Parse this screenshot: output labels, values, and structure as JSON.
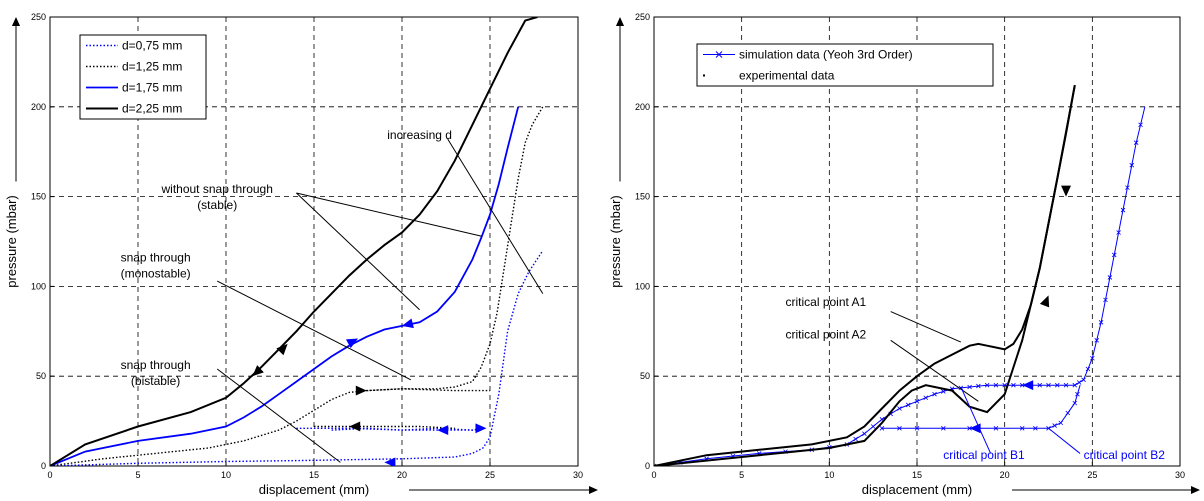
{
  "chart_data": [
    {
      "type": "line",
      "title": "",
      "xlabel": "displacement (mm)",
      "ylabel": "pressure (mbar)",
      "xlim": [
        0,
        30
      ],
      "ylim": [
        0,
        250
      ],
      "xticks": [
        "0",
        "5",
        "10",
        "15",
        "20",
        "25",
        "30"
      ],
      "yticks": [
        "0",
        "50",
        "100",
        "150",
        "200",
        "250"
      ],
      "grid": true,
      "legend_position": "top-left",
      "series": [
        {
          "name": "d=0,75 mm",
          "color": "#0000ff",
          "dash": "dotted",
          "width": 1.4,
          "x": [
            0,
            5,
            10,
            14,
            17,
            20,
            23,
            24,
            24.6,
            25,
            25.5,
            26,
            26.6,
            27.2,
            27.8,
            28
          ],
          "y": [
            0,
            1.5,
            2.5,
            3,
            3.5,
            4,
            5,
            7,
            10,
            16,
            40,
            75,
            96,
            108,
            117,
            120
          ]
        },
        {
          "name": "d=1,25 mm",
          "color": "#000000",
          "dash": "dotted",
          "width": 1.4,
          "x": [
            0,
            3,
            6,
            9,
            11,
            13,
            14,
            15,
            16,
            17,
            18,
            20,
            22,
            23,
            24,
            24.5,
            25,
            25.4,
            25.8,
            26.2,
            26.6,
            27,
            27.4,
            28
          ],
          "y": [
            0,
            4,
            7,
            10,
            14,
            20,
            25,
            31,
            37,
            41,
            42,
            43,
            43,
            44,
            47,
            55,
            68,
            85,
            110,
            135,
            160,
            180,
            190,
            200
          ]
        },
        {
          "name": "d=1,75 mm",
          "color": "#0000ff",
          "dash": "solid",
          "width": 1.8,
          "x": [
            0,
            2,
            5,
            8,
            10,
            11,
            12,
            13,
            14,
            15,
            16,
            17,
            18,
            19,
            20,
            21,
            22,
            23,
            24,
            24.5,
            25,
            25.5,
            26,
            26.6
          ],
          "y": [
            0,
            8,
            14,
            18,
            22,
            27,
            33,
            40,
            47,
            54,
            61,
            67,
            72,
            76,
            78,
            80,
            86,
            97,
            115,
            127,
            140,
            157,
            177,
            200
          ]
        },
        {
          "name": "d=2,25 mm",
          "color": "#000000",
          "dash": "solid",
          "width": 2,
          "x": [
            0,
            2,
            5,
            8,
            10,
            11,
            12,
            13,
            14,
            15,
            16,
            17,
            18,
            19,
            20,
            21,
            22,
            23,
            24,
            25,
            26,
            27,
            27.7
          ],
          "y": [
            0,
            12,
            22,
            30,
            38,
            46,
            55,
            65,
            75,
            86,
            96,
            106,
            115,
            123,
            130,
            140,
            153,
            170,
            190,
            210,
            230,
            248,
            250
          ]
        }
      ],
      "extra_curves": [
        {
          "color": "#0000ff",
          "dash": "dotted",
          "width": 1.4,
          "x": [
            14,
            17,
            20,
            23,
            24,
            24.6
          ],
          "y": [
            21,
            21,
            20,
            20,
            20,
            21
          ]
        },
        {
          "color": "#0000ff",
          "dash": "dotted",
          "width": 1.4,
          "x": [
            16,
            18,
            20,
            22,
            24,
            24.7
          ],
          "y": [
            20,
            21,
            20,
            21,
            20,
            21
          ]
        },
        {
          "color": "#000000",
          "dash": "dotted",
          "width": 1.4,
          "x": [
            15,
            18,
            21,
            23
          ],
          "y": [
            22,
            22,
            22,
            21
          ]
        },
        {
          "color": "#000000",
          "dash": "dotted",
          "width": 1.4,
          "x": [
            18,
            20,
            23,
            25
          ],
          "y": [
            42,
            43,
            42,
            42
          ]
        }
      ],
      "annotations": [
        {
          "lines": [
            "increasing d"
          ],
          "x": 21,
          "y": 182
        },
        {
          "lines": [
            "without snap through",
            "(stable)"
          ],
          "x": 9.5,
          "y": 152
        },
        {
          "lines": [
            "snap through",
            "(monostable)"
          ],
          "x": 6,
          "y": 114
        },
        {
          "lines": [
            "snap through",
            "(bistable)"
          ],
          "x": 6,
          "y": 54
        }
      ]
    },
    {
      "type": "line",
      "title": "",
      "xlabel": "displacement (mm)",
      "ylabel": "pressure (mbar)",
      "xlim": [
        0,
        30
      ],
      "ylim": [
        0,
        250
      ],
      "xticks": [
        "0",
        "5",
        "10",
        "15",
        "20",
        "25",
        "30"
      ],
      "yticks": [
        "0",
        "50",
        "100",
        "150",
        "200",
        "250"
      ],
      "grid": true,
      "legend_position": "top-left",
      "series": [
        {
          "name": "simulation data  (Yeoh 3rd Order)",
          "color": "#0000ff",
          "marker": "x",
          "width": 1,
          "x": [
            0,
            3,
            6,
            9,
            11,
            12,
            13,
            14,
            15,
            16,
            17,
            18,
            19,
            20,
            21,
            22,
            23,
            24,
            24.5,
            25,
            25.5,
            26,
            26.5,
            27,
            27.5,
            28
          ],
          "y": [
            0,
            4,
            7,
            9,
            12,
            18,
            26,
            32,
            36,
            40,
            43,
            44,
            45,
            45,
            45,
            45,
            45,
            45,
            48,
            60,
            80,
            105,
            130,
            155,
            180,
            200
          ]
        },
        {
          "name": "experimental data",
          "color": "#000000",
          "marker": "dot",
          "width": 2,
          "x": [
            0,
            3,
            6,
            9,
            11,
            12,
            13,
            14,
            15,
            16,
            17,
            18,
            18.5,
            19,
            19.5,
            20,
            20.5,
            21,
            21.5,
            22,
            22.5,
            23,
            23.5,
            24
          ],
          "y": [
            0,
            6,
            9,
            12,
            16,
            22,
            32,
            42,
            50,
            57,
            62,
            67,
            68,
            67,
            66,
            65,
            68,
            76,
            90,
            110,
            135,
            160,
            185,
            212
          ]
        }
      ],
      "extra_curves": [
        {
          "color": "#0000ff",
          "marker": "x",
          "width": 1,
          "x": [
            13,
            15,
            18,
            21,
            22.5
          ],
          "y": [
            21,
            21,
            21,
            21,
            21
          ]
        },
        {
          "color": "#0000ff",
          "marker": "x",
          "width": 1,
          "x": [
            22.5,
            23.2,
            24,
            24.3
          ],
          "y": [
            21,
            24,
            35,
            45
          ]
        },
        {
          "color": "#000000",
          "marker": "dot",
          "width": 2,
          "x": [
            0,
            5,
            8,
            10,
            12,
            13,
            14,
            14.7,
            15.5,
            17,
            18,
            19,
            20,
            21,
            22,
            23,
            24
          ],
          "y": [
            0,
            5,
            8,
            10,
            14,
            24,
            36,
            42,
            45,
            42,
            33,
            30,
            40,
            70,
            110,
            160,
            212
          ]
        }
      ],
      "annotations": [
        {
          "lines": [
            "critical point A1"
          ],
          "x": 7.5,
          "y": 89
        },
        {
          "lines": [
            "critical point A2"
          ],
          "x": 7.5,
          "y": 71
        },
        {
          "lines": [
            "critical point B1"
          ],
          "x": 16.5,
          "y": 4
        },
        {
          "lines": [
            "critical point B2"
          ],
          "x": 24.5,
          "y": 4
        }
      ]
    }
  ]
}
